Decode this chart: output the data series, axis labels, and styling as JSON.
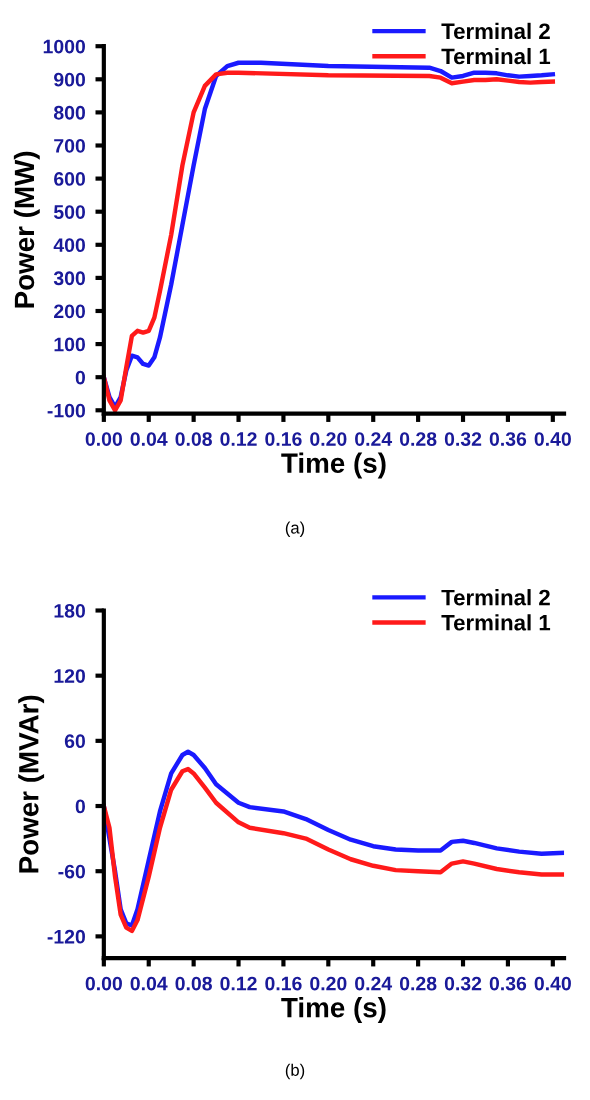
{
  "chart_data": [
    {
      "type": "line",
      "xlabel": "Time (s)",
      "ylabel": "Power (MW)",
      "xlim": [
        0,
        0.41
      ],
      "ylim": [
        -110,
        1000
      ],
      "xticks": [
        {
          "value": 0,
          "label": "0.00"
        },
        {
          "value": 0.04,
          "label": "0.04"
        },
        {
          "value": 0.08,
          "label": "0.08"
        },
        {
          "value": 0.12,
          "label": "0.12"
        },
        {
          "value": 0.16,
          "label": "0.16"
        },
        {
          "value": 0.2,
          "label": "0.20"
        },
        {
          "value": 0.24,
          "label": "0.24"
        },
        {
          "value": 0.28,
          "label": "0.28"
        },
        {
          "value": 0.32,
          "label": "0.32"
        },
        {
          "value": 0.36,
          "label": "0.36"
        },
        {
          "value": 0.4,
          "label": "0.40"
        }
      ],
      "yticks": [
        -100,
        0,
        100,
        200,
        300,
        400,
        500,
        600,
        700,
        800,
        900,
        1000
      ],
      "legend": "top right",
      "grid": false,
      "annotations": [
        "(a)"
      ],
      "series": [
        {
          "name": "Terminal 2",
          "color": "#1a1aff",
          "x": [
            0,
            0.005,
            0.01,
            0.015,
            0.02,
            0.025,
            0.03,
            0.035,
            0.04,
            0.045,
            0.05,
            0.06,
            0.07,
            0.08,
            0.09,
            0.1,
            0.11,
            0.12,
            0.14,
            0.2,
            0.29,
            0.3,
            0.31,
            0.32,
            0.33,
            0.34,
            0.35,
            0.36,
            0.37,
            0.38,
            0.39,
            0.4
          ],
          "values": [
            0,
            -60,
            -90,
            -60,
            20,
            65,
            60,
            40,
            35,
            60,
            120,
            280,
            460,
            640,
            810,
            910,
            940,
            950,
            950,
            940,
            935,
            925,
            905,
            910,
            920,
            920,
            918,
            912,
            908,
            910,
            912,
            915
          ]
        },
        {
          "name": "Terminal 1",
          "color": "#ff1a1a",
          "x": [
            0,
            0.005,
            0.01,
            0.015,
            0.02,
            0.025,
            0.03,
            0.035,
            0.04,
            0.045,
            0.05,
            0.06,
            0.07,
            0.08,
            0.09,
            0.1,
            0.11,
            0.12,
            0.2,
            0.29,
            0.3,
            0.31,
            0.32,
            0.33,
            0.34,
            0.35,
            0.36,
            0.37,
            0.38,
            0.39,
            0.4
          ],
          "values": [
            0,
            -70,
            -100,
            -70,
            30,
            125,
            140,
            135,
            140,
            180,
            260,
            430,
            640,
            800,
            880,
            915,
            920,
            920,
            912,
            910,
            905,
            888,
            893,
            898,
            898,
            900,
            896,
            892,
            890,
            892,
            893
          ]
        }
      ]
    },
    {
      "type": "line",
      "xlabel": "Time (s)",
      "ylabel": "Power (MVAr)",
      "xlim": [
        0,
        0.41
      ],
      "ylim": [
        -140,
        180
      ],
      "xticks": [
        {
          "value": 0,
          "label": "0.00"
        },
        {
          "value": 0.04,
          "label": "0.04"
        },
        {
          "value": 0.08,
          "label": "0.08"
        },
        {
          "value": 0.12,
          "label": "0.12"
        },
        {
          "value": 0.16,
          "label": "0.16"
        },
        {
          "value": 0.2,
          "label": "0.20"
        },
        {
          "value": 0.24,
          "label": "0.24"
        },
        {
          "value": 0.28,
          "label": "0.28"
        },
        {
          "value": 0.32,
          "label": "0.32"
        },
        {
          "value": 0.36,
          "label": "0.36"
        },
        {
          "value": 0.4,
          "label": "0.40"
        }
      ],
      "yticks": [
        -120,
        -60,
        0,
        60,
        120,
        180
      ],
      "legend": "top right",
      "grid": false,
      "annotations": [
        "(b)"
      ],
      "series": [
        {
          "name": "Terminal 2",
          "color": "#1a1aff",
          "x": [
            0,
            0.01,
            0.015,
            0.02,
            0.025,
            0.03,
            0.04,
            0.05,
            0.06,
            0.07,
            0.075,
            0.08,
            0.09,
            0.1,
            0.12,
            0.13,
            0.16,
            0.18,
            0.2,
            0.22,
            0.24,
            0.26,
            0.28,
            0.3,
            0.31,
            0.32,
            0.33,
            0.35,
            0.37,
            0.39,
            0.41
          ],
          "values": [
            0,
            -60,
            -95,
            -108,
            -110,
            -95,
            -50,
            -5,
            30,
            47,
            50,
            47,
            35,
            20,
            3,
            -1,
            -5,
            -12,
            -22,
            -31,
            -37,
            -40,
            -41,
            -41,
            -33,
            -32,
            -34,
            -39,
            -42,
            -44,
            -43
          ]
        },
        {
          "name": "Terminal 1",
          "color": "#ff1a1a",
          "x": [
            0,
            0.005,
            0.01,
            0.015,
            0.02,
            0.025,
            0.03,
            0.04,
            0.05,
            0.06,
            0.07,
            0.075,
            0.08,
            0.09,
            0.1,
            0.12,
            0.13,
            0.16,
            0.18,
            0.2,
            0.22,
            0.24,
            0.26,
            0.28,
            0.3,
            0.31,
            0.32,
            0.33,
            0.35,
            0.37,
            0.39,
            0.41
          ],
          "values": [
            0,
            -20,
            -65,
            -100,
            -112,
            -115,
            -105,
            -65,
            -20,
            15,
            32,
            34,
            30,
            17,
            3,
            -15,
            -20,
            -25,
            -30,
            -40,
            -49,
            -55,
            -59,
            -60,
            -61,
            -53,
            -51,
            -53,
            -58,
            -61,
            -63,
            -63
          ]
        }
      ]
    }
  ]
}
